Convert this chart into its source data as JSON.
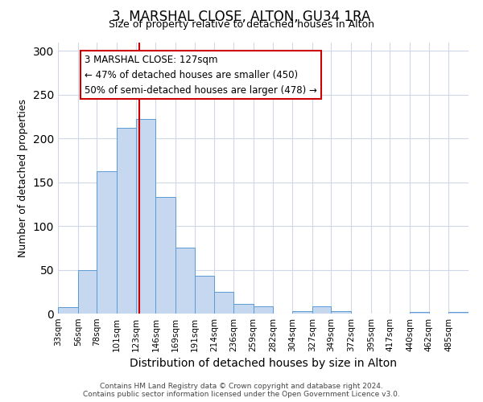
{
  "title": "3, MARSHAL CLOSE, ALTON, GU34 1RA",
  "subtitle": "Size of property relative to detached houses in Alton",
  "xlabel": "Distribution of detached houses by size in Alton",
  "ylabel": "Number of detached properties",
  "bin_labels": [
    "33sqm",
    "56sqm",
    "78sqm",
    "101sqm",
    "123sqm",
    "146sqm",
    "169sqm",
    "191sqm",
    "214sqm",
    "236sqm",
    "259sqm",
    "282sqm",
    "304sqm",
    "327sqm",
    "349sqm",
    "372sqm",
    "395sqm",
    "417sqm",
    "440sqm",
    "462sqm",
    "485sqm"
  ],
  "bin_edges": [
    33,
    56,
    78,
    101,
    123,
    146,
    169,
    191,
    214,
    236,
    259,
    282,
    304,
    327,
    349,
    372,
    395,
    417,
    440,
    462,
    485,
    508
  ],
  "bar_heights": [
    7,
    50,
    163,
    212,
    222,
    133,
    75,
    43,
    25,
    11,
    8,
    0,
    3,
    8,
    3,
    0,
    0,
    0,
    2,
    0,
    2
  ],
  "bar_color": "#c5d8f0",
  "bar_edge_color": "#5b9bd5",
  "property_line_x": 127,
  "property_line_color": "#cc0000",
  "ylim": [
    0,
    310
  ],
  "yticks": [
    0,
    50,
    100,
    150,
    200,
    250,
    300
  ],
  "annotation_title": "3 MARSHAL CLOSE: 127sqm",
  "annotation_line1": "← 47% of detached houses are smaller (450)",
  "annotation_line2": "50% of semi-detached houses are larger (478) →",
  "annotation_box_color": "#ffffff",
  "annotation_box_edge_color": "#cc0000",
  "footer_line1": "Contains HM Land Registry data © Crown copyright and database right 2024.",
  "footer_line2": "Contains public sector information licensed under the Open Government Licence v3.0.",
  "bg_color": "#ffffff",
  "grid_color": "#d0d8e8"
}
